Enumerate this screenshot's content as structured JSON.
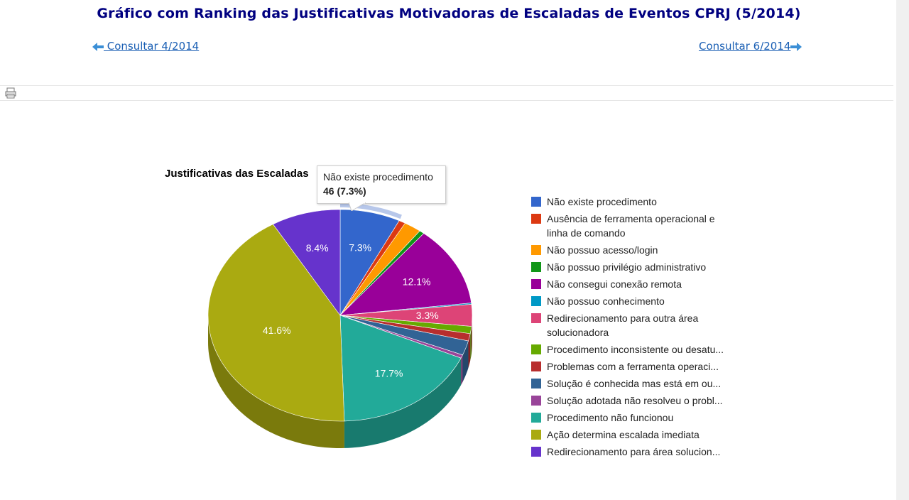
{
  "page": {
    "title": "Gráfico com Ranking das Justificativas Motivadoras de Escaladas de Eventos CPRJ (5/2014)",
    "prev_link": " Consultar 4/2014",
    "next_link": "Consultar 6/2014"
  },
  "icons": {
    "prev": "left-arrow-icon",
    "next": "right-arrow-icon",
    "print": "printer-icon"
  },
  "chart_data": {
    "type": "pie",
    "title": "Justificativas das Escaladas",
    "tooltip": {
      "label": "Não existe procedimento",
      "value": "46 (7.3%)"
    },
    "slices": [
      {
        "label": "Não existe procedimento",
        "legend": "Não existe procedimento",
        "percent": 7.3,
        "value": 46,
        "color": "#3366cc",
        "show_label": "7.3%"
      },
      {
        "label": "Ausência de ferramenta operacional e linha de comando",
        "legend": "Ausência de ferramenta operacional e linha de comando",
        "percent": 0.8,
        "color": "#dc3912",
        "show_label": ""
      },
      {
        "label": "Não possuo acesso/login",
        "legend": "Não possuo acesso/login",
        "percent": 2.1,
        "color": "#ff9900",
        "show_label": ""
      },
      {
        "label": "Não possuo privilégio administrativo",
        "legend": "Não possuo privilégio administrativo",
        "percent": 0.6,
        "color": "#109618",
        "show_label": ""
      },
      {
        "label": "Não consegui conexão remota",
        "legend": "Não consegui conexão remota",
        "percent": 12.1,
        "color": "#990099",
        "show_label": "12.1%"
      },
      {
        "label": "Não possuo conhecimento",
        "legend": "Não possuo conhecimento",
        "percent": 0.2,
        "color": "#0099c6",
        "show_label": ""
      },
      {
        "label": "Redirecionamento para outra área solucionadora",
        "legend": "Redirecionamento para outra área solucionadora",
        "percent": 3.3,
        "color": "#dd4477",
        "show_label": "3.3%"
      },
      {
        "label": "Procedimento inconsistente ou desatualizado",
        "legend": "Procedimento inconsistente ou desatu...",
        "percent": 1.1,
        "color": "#66aa00",
        "show_label": ""
      },
      {
        "label": "Problemas com a ferramenta operacional",
        "legend": "Problemas com a ferramenta operaci...",
        "percent": 1.1,
        "color": "#b82e2e",
        "show_label": ""
      },
      {
        "label": "Solução é conhecida mas está em outra área",
        "legend": "Solução é conhecida mas está em ou...",
        "percent": 2.2,
        "color": "#316395",
        "show_label": ""
      },
      {
        "label": "Solução adotada não resolveu o problema",
        "legend": "Solução adotada não resolveu o probl...",
        "percent": 0.5,
        "color": "#994499",
        "show_label": ""
      },
      {
        "label": "Procedimento não funcionou",
        "legend": "Procedimento não funcionou",
        "percent": 17.7,
        "color": "#22aa99",
        "show_label": "17.7%"
      },
      {
        "label": "Ação determina escalada imediata",
        "legend": "Ação determina escalada imediata",
        "percent": 41.6,
        "color": "#aaaa11",
        "show_label": "41.6%"
      },
      {
        "label": "Redirecionamento para área solucionadora",
        "legend": "Redirecionamento para área solucion...",
        "percent": 8.4,
        "color": "#6633cc",
        "show_label": "8.4%"
      }
    ]
  }
}
